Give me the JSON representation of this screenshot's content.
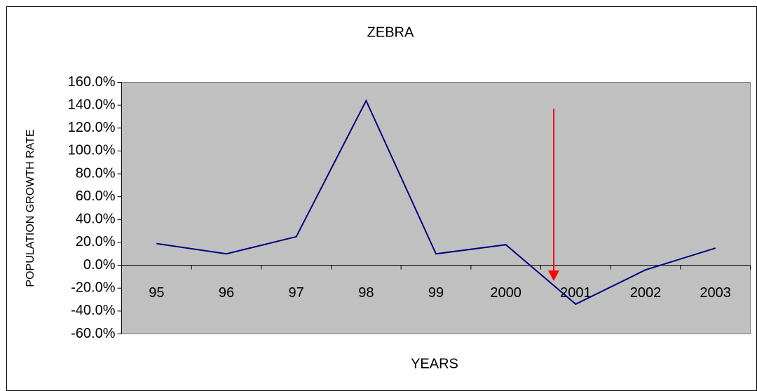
{
  "chart_data": {
    "type": "line",
    "title": "ZEBRA",
    "x_label": "YEARS",
    "y_label": "POPULATION GROWTH RATE",
    "categories": [
      "95",
      "96",
      "97",
      "98",
      "99",
      "2000",
      "2001",
      "2002",
      "2003"
    ],
    "series": [
      {
        "name": "ZEBRA",
        "color": "#000080",
        "values": [
          19,
          10,
          25,
          144,
          10,
          18,
          -34,
          -4,
          15
        ]
      }
    ],
    "ylim": [
      -60,
      160
    ],
    "yticks": [
      {
        "value": -60,
        "label": "-60.0%"
      },
      {
        "value": -40,
        "label": "-40.0%"
      },
      {
        "value": -20,
        "label": "-20.0%"
      },
      {
        "value": 0,
        "label": "0.0%"
      },
      {
        "value": 20,
        "label": "20.0%"
      },
      {
        "value": 40,
        "label": "40.0%"
      },
      {
        "value": 60,
        "label": "60.0%"
      },
      {
        "value": 80,
        "label": "80.0%"
      },
      {
        "value": 100,
        "label": "100.0%"
      },
      {
        "value": 120,
        "label": "120.0%"
      },
      {
        "value": 140,
        "label": "140.0%"
      },
      {
        "value": 160,
        "label": "160.0%"
      }
    ],
    "grid": false
  }
}
